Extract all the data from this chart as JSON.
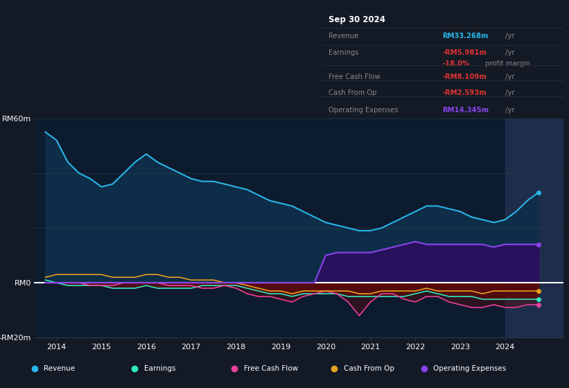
{
  "bg_color": "#131a25",
  "chart_bg": "#0d1b2e",
  "title": "Sep 30 2024",
  "years": [
    2013.75,
    2014.0,
    2014.25,
    2014.5,
    2014.75,
    2015.0,
    2015.25,
    2015.5,
    2015.75,
    2016.0,
    2016.25,
    2016.5,
    2016.75,
    2017.0,
    2017.25,
    2017.5,
    2017.75,
    2018.0,
    2018.25,
    2018.5,
    2018.75,
    2019.0,
    2019.25,
    2019.5,
    2019.75,
    2020.0,
    2020.25,
    2020.5,
    2020.75,
    2021.0,
    2021.25,
    2021.5,
    2021.75,
    2022.0,
    2022.25,
    2022.5,
    2022.75,
    2023.0,
    2023.25,
    2023.5,
    2023.75,
    2024.0,
    2024.25,
    2024.5,
    2024.75
  ],
  "revenue": [
    55,
    52,
    44,
    40,
    38,
    35,
    36,
    40,
    44,
    47,
    44,
    42,
    40,
    38,
    37,
    37,
    36,
    35,
    34,
    32,
    30,
    29,
    28,
    26,
    24,
    22,
    21,
    20,
    19,
    19,
    20,
    22,
    24,
    26,
    28,
    28,
    27,
    26,
    24,
    23,
    22,
    23,
    26,
    30,
    33
  ],
  "earnings": [
    1,
    0,
    -1,
    -1,
    -1,
    -1,
    -2,
    -2,
    -2,
    -1,
    -2,
    -2,
    -2,
    -2,
    -1,
    -1,
    -1,
    -1,
    -2,
    -3,
    -4,
    -4,
    -5,
    -4,
    -4,
    -4,
    -4,
    -5,
    -5,
    -5,
    -5,
    -5,
    -5,
    -4,
    -3,
    -4,
    -5,
    -5,
    -5,
    -6,
    -6,
    -6,
    -6,
    -6,
    -6
  ],
  "fcf": [
    0,
    0,
    0,
    0,
    -1,
    -1,
    -1,
    0,
    0,
    0,
    0,
    -1,
    -1,
    -1,
    -2,
    -2,
    -1,
    -2,
    -4,
    -5,
    -5,
    -6,
    -7,
    -5,
    -4,
    -3,
    -4,
    -7,
    -12,
    -7,
    -4,
    -4,
    -6,
    -7,
    -5,
    -5,
    -7,
    -8,
    -9,
    -9,
    -8,
    -9,
    -9,
    -8,
    -8
  ],
  "cashfromop": [
    2,
    3,
    3,
    3,
    3,
    3,
    2,
    2,
    2,
    3,
    3,
    2,
    2,
    1,
    1,
    1,
    0,
    0,
    -1,
    -2,
    -3,
    -3,
    -4,
    -3,
    -3,
    -3,
    -3,
    -3,
    -4,
    -4,
    -3,
    -3,
    -3,
    -3,
    -2,
    -3,
    -3,
    -3,
    -3,
    -4,
    -3,
    -3,
    -3,
    -3,
    -3
  ],
  "opex": [
    0,
    0,
    0,
    0,
    0,
    0,
    0,
    0,
    0,
    0,
    0,
    0,
    0,
    0,
    0,
    0,
    0,
    0,
    0,
    0,
    0,
    0,
    0,
    0,
    0,
    10,
    11,
    11,
    11,
    11,
    12,
    13,
    14,
    15,
    14,
    14,
    14,
    14,
    14,
    14,
    13,
    14,
    14,
    14,
    14
  ],
  "highlight_start": 2024.0,
  "highlight_color": "#1e2d4a",
  "ylim": [
    -20,
    60
  ],
  "xticks": [
    2014,
    2015,
    2016,
    2017,
    2018,
    2019,
    2020,
    2021,
    2022,
    2023,
    2024
  ],
  "xlim": [
    2013.5,
    2025.3
  ],
  "revenue_color": "#29b5e8",
  "earnings_color": "#2de8c0",
  "fcf_color": "#e8429e",
  "cashfromop_color": "#e8a020",
  "opex_color": "#8844ee",
  "revenue_fill": "#0d2d48",
  "opex_fill": "#2d1060",
  "neg_fill": "#5a0a0a",
  "table_bg": "#0a0a0a",
  "table_border": "#333333",
  "revenue_val_color": "#29b5e8",
  "earnings_val_color": "#dd3333",
  "fcf_val_color": "#dd3333",
  "cashfromop_val_color": "#dd3333",
  "opex_val_color": "#8844ee",
  "label_color": "#888888",
  "legend_bg": "#1a202e"
}
